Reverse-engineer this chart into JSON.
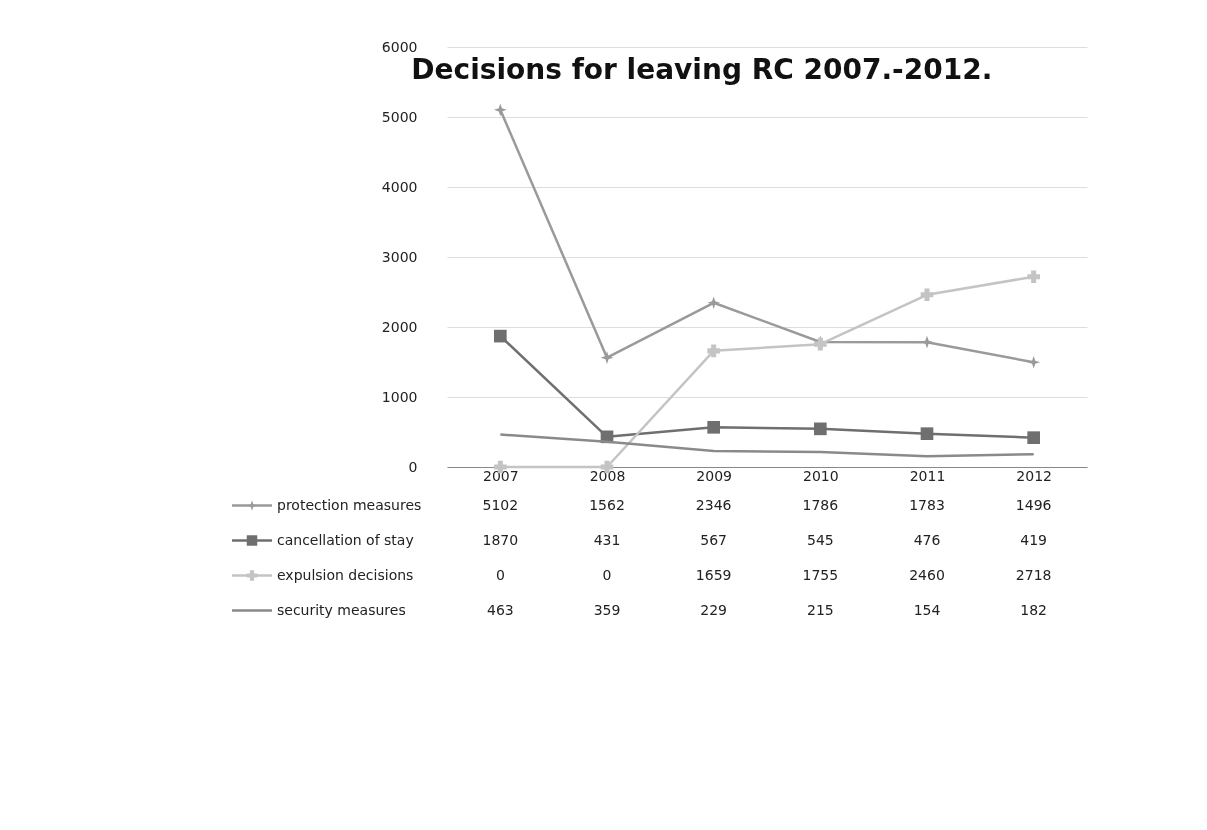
{
  "chart_data": {
    "type": "line",
    "title": "Decisions for leaving RC 2007.-2012.",
    "categories": [
      "2007",
      "2008",
      "2009",
      "2010",
      "2011",
      "2012"
    ],
    "series": [
      {
        "name": "protection measures",
        "color": "#9a9a9a",
        "marker": "star",
        "values": [
          5102,
          1562,
          2346,
          1786,
          1783,
          1496
        ]
      },
      {
        "name": "cancellation of stay",
        "color": "#6f6f6f",
        "marker": "square",
        "values": [
          1870,
          431,
          567,
          545,
          476,
          419
        ]
      },
      {
        "name": "expulsion decisions",
        "color": "#c4c4c4",
        "marker": "cross",
        "values": [
          0,
          0,
          1659,
          1755,
          2460,
          2718
        ]
      },
      {
        "name": "security measures",
        "color": "#8a8a8a",
        "marker": "none",
        "values": [
          463,
          359,
          229,
          215,
          154,
          182
        ]
      }
    ],
    "ylim": [
      0,
      6000
    ],
    "yticks": [
      0,
      1000,
      2000,
      3000,
      4000,
      5000,
      6000
    ],
    "grid": "y",
    "data_labels": true,
    "legend": "bottom",
    "line_style": "solid"
  }
}
